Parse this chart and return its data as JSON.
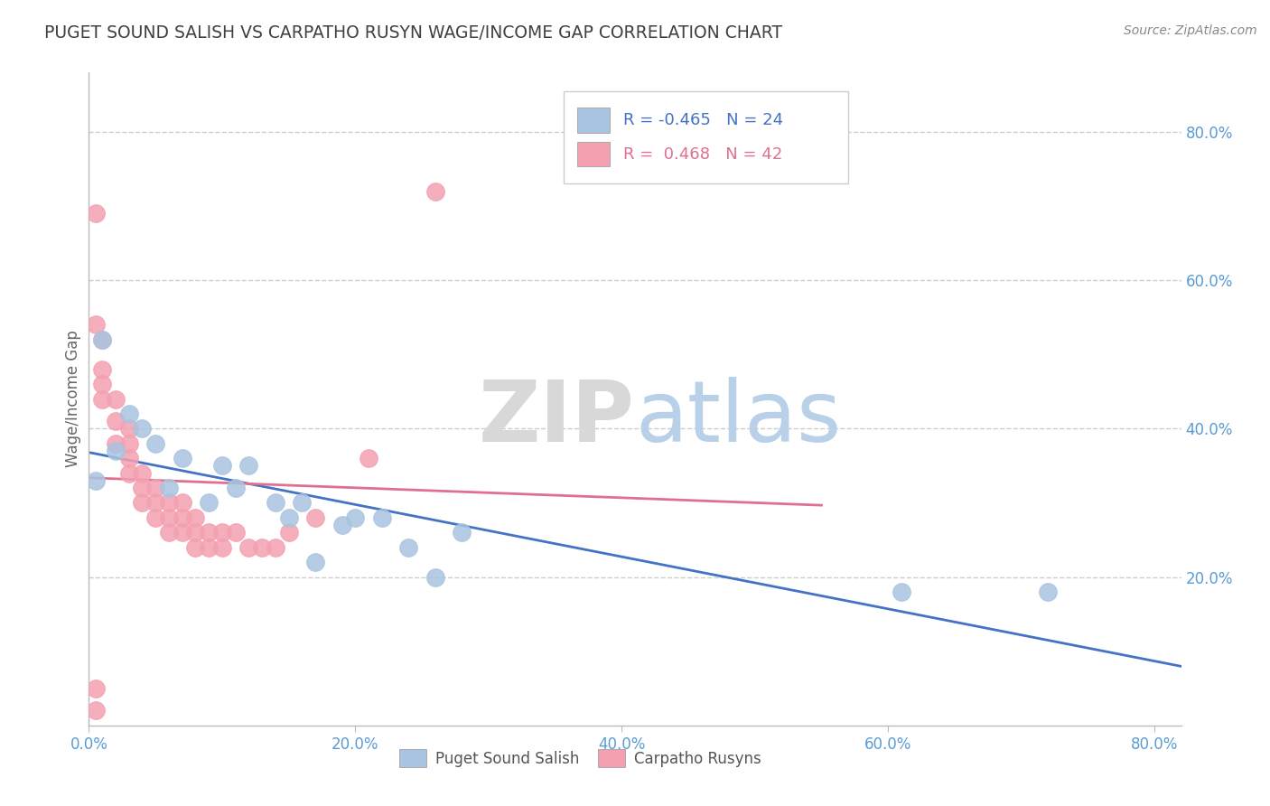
{
  "title": "PUGET SOUND SALISH VS CARPATHO RUSYN WAGE/INCOME GAP CORRELATION CHART",
  "source": "Source: ZipAtlas.com",
  "ylabel": "Wage/Income Gap",
  "xlim": [
    0.0,
    0.82
  ],
  "ylim": [
    0.0,
    0.88
  ],
  "blue_r": -0.465,
  "blue_n": 24,
  "pink_r": 0.468,
  "pink_n": 42,
  "blue_color": "#a8c4e0",
  "pink_color": "#f4a0b0",
  "blue_line_color": "#4472c4",
  "pink_line_color": "#e07090",
  "title_color": "#404040",
  "axis_color": "#5b9bd5",
  "legend_r_color_blue": "#4472c4",
  "legend_r_color_pink": "#e07090",
  "blue_points_x": [
    0.005,
    0.01,
    0.02,
    0.03,
    0.04,
    0.05,
    0.06,
    0.07,
    0.09,
    0.1,
    0.11,
    0.12,
    0.14,
    0.15,
    0.16,
    0.17,
    0.19,
    0.2,
    0.22,
    0.24,
    0.26,
    0.28,
    0.61,
    0.72
  ],
  "blue_points_y": [
    0.33,
    0.52,
    0.37,
    0.42,
    0.4,
    0.38,
    0.32,
    0.36,
    0.3,
    0.35,
    0.32,
    0.35,
    0.3,
    0.28,
    0.3,
    0.22,
    0.27,
    0.28,
    0.28,
    0.24,
    0.2,
    0.26,
    0.18,
    0.18
  ],
  "pink_points_x": [
    0.005,
    0.005,
    0.01,
    0.01,
    0.01,
    0.01,
    0.02,
    0.02,
    0.02,
    0.03,
    0.03,
    0.03,
    0.03,
    0.04,
    0.04,
    0.04,
    0.05,
    0.05,
    0.05,
    0.06,
    0.06,
    0.06,
    0.07,
    0.07,
    0.07,
    0.08,
    0.08,
    0.08,
    0.09,
    0.09,
    0.1,
    0.1,
    0.11,
    0.12,
    0.13,
    0.14,
    0.15,
    0.17,
    0.21,
    0.26,
    0.005,
    0.005
  ],
  "pink_points_y": [
    0.69,
    0.54,
    0.52,
    0.48,
    0.46,
    0.44,
    0.44,
    0.41,
    0.38,
    0.4,
    0.38,
    0.36,
    0.34,
    0.34,
    0.32,
    0.3,
    0.32,
    0.3,
    0.28,
    0.3,
    0.28,
    0.26,
    0.3,
    0.28,
    0.26,
    0.28,
    0.26,
    0.24,
    0.26,
    0.24,
    0.26,
    0.24,
    0.26,
    0.24,
    0.24,
    0.24,
    0.26,
    0.28,
    0.36,
    0.72,
    0.05,
    0.02
  ],
  "watermark_zip": "ZIP",
  "watermark_atlas": "atlas",
  "grid_color": "#cccccc",
  "bg_color": "#ffffff",
  "ytick_vals": [
    0.2,
    0.4,
    0.6,
    0.8
  ],
  "ytick_labels": [
    "20.0%",
    "40.0%",
    "60.0%",
    "80.0%"
  ],
  "xtick_vals": [
    0.0,
    0.2,
    0.4,
    0.6,
    0.8
  ],
  "xtick_labels": [
    "0.0%",
    "20.0%",
    "40.0%",
    "60.0%",
    "80.0%"
  ],
  "blue_line_x0": 0.0,
  "blue_line_x1": 0.82,
  "pink_line_x0": 0.0,
  "pink_line_x1": 0.55
}
